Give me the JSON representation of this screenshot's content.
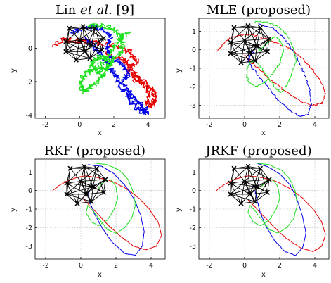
{
  "colors": {
    "red": "#e60000",
    "green": "#1ee01e",
    "blue": "#0000e6",
    "black": "#000000"
  },
  "chart_data": [
    {
      "type": "line",
      "title": "Lin et al. [9]",
      "title_parts": {
        "main": "Lin",
        "italic": "et al.",
        "ref": "[9]"
      },
      "xlabel": "x",
      "ylabel": "y",
      "xlim": [
        -2.6,
        5.0
      ],
      "ylim": [
        -4.2,
        1.8
      ],
      "xticks": [
        "-2",
        "0",
        "2",
        "4"
      ],
      "yticks": [
        "-4",
        "-2",
        "0"
      ],
      "xtick_values": [
        -2,
        0,
        2,
        4
      ],
      "ytick_values": [
        -4,
        -2,
        0
      ],
      "grid": false,
      "style": "noisy",
      "series": [
        {
          "color": "red",
          "x": [
            -1.5,
            -1.0,
            -0.5,
            0.3,
            1.2,
            2.2,
            3.0,
            3.3,
            2.8,
            3.2,
            3.9,
            4.3,
            4.4,
            4.2,
            3.9,
            4.1,
            3.6,
            3.2,
            2.8,
            2.5,
            1.5
          ],
          "y": [
            0.2,
            0.5,
            0.5,
            0.4,
            0.3,
            0.1,
            -0.3,
            -0.8,
            -1.3,
            -1.9,
            -2.1,
            -2.6,
            -3.1,
            -3.5,
            -3.2,
            -2.6,
            -2.0,
            -1.5,
            -0.9,
            -0.6,
            -0.3
          ]
        },
        {
          "color": "blue",
          "x": [
            -0.4,
            0.2,
            0.9,
            1.4,
            1.8,
            1.6,
            1.9,
            2.5,
            2.9,
            2.5,
            2.8,
            3.2,
            3.5,
            3.8,
            3.9,
            3.5,
            3.0,
            2.6,
            2.2,
            1.9,
            1.6,
            1.2,
            0.8,
            0.4
          ],
          "y": [
            0.9,
            1.2,
            1.3,
            1.1,
            0.6,
            0.0,
            -0.6,
            -1.0,
            -1.5,
            -2.0,
            -2.5,
            -3.0,
            -3.3,
            -3.6,
            -3.9,
            -3.7,
            -3.2,
            -2.6,
            -1.9,
            -1.4,
            -0.8,
            -0.3,
            0.2,
            0.6
          ]
        },
        {
          "color": "green",
          "x": [
            0.5,
            1.2,
            1.9,
            2.4,
            2.6,
            2.3,
            1.9,
            1.5,
            1.0,
            0.7,
            0.9,
            1.4,
            1.8,
            1.5,
            1.1,
            0.6,
            0.2,
            0.0,
            0.3,
            0.7,
            1.2,
            1.6,
            2.0,
            2.4,
            2.9
          ],
          "y": [
            1.3,
            1.4,
            1.2,
            0.8,
            0.3,
            -0.3,
            -0.8,
            -1.2,
            -1.4,
            -1.0,
            -0.6,
            -0.5,
            -0.9,
            -1.5,
            -1.9,
            -2.3,
            -2.6,
            -2.1,
            -1.6,
            -1.3,
            -1.0,
            -0.5,
            0.1,
            0.6,
            1.0
          ]
        }
      ]
    },
    {
      "type": "line",
      "title": "MLE (proposed)",
      "xlabel": "x",
      "ylabel": "y",
      "xlim": [
        -2.6,
        4.8
      ],
      "ylim": [
        -3.7,
        1.7
      ],
      "xticks": [
        "-2",
        "0",
        "2",
        "4"
      ],
      "yticks": [
        "-3",
        "-2",
        "-1",
        "0",
        "1"
      ],
      "xtick_values": [
        -2,
        0,
        2,
        4
      ],
      "ytick_values": [
        -3,
        -2,
        -1,
        0,
        1
      ],
      "grid": true,
      "style": "lightnoise",
      "series": [
        {
          "color": "red",
          "x": [
            -1.6,
            -1.3,
            -0.9,
            -0.3,
            0.4,
            1.2,
            2.0,
            2.7,
            3.3,
            3.9,
            4.4,
            4.6,
            4.4,
            3.9,
            3.2,
            2.4,
            1.6,
            0.9,
            0.3,
            0.0
          ],
          "y": [
            -0.1,
            0.2,
            0.6,
            0.8,
            0.8,
            0.6,
            0.3,
            0.0,
            -0.5,
            -1.1,
            -1.8,
            -2.4,
            -2.9,
            -3.0,
            -2.8,
            -2.3,
            -1.7,
            -1.1,
            -0.6,
            -0.3
          ]
        },
        {
          "color": "blue",
          "x": [
            0.8,
            1.5,
            2.1,
            2.6,
            3.0,
            3.4,
            3.7,
            3.8,
            3.6,
            3.2,
            2.6,
            1.9,
            1.3,
            0.8,
            0.4,
            0.2,
            0.3,
            0.6
          ],
          "y": [
            1.4,
            1.2,
            0.8,
            0.2,
            -0.5,
            -1.3,
            -2.1,
            -2.9,
            -3.5,
            -3.6,
            -3.3,
            -2.7,
            -2.0,
            -1.4,
            -0.9,
            -0.6,
            -0.3,
            0.0
          ]
        },
        {
          "color": "green",
          "x": [
            0.6,
            1.3,
            2.0,
            2.5,
            2.8,
            2.9,
            2.7,
            2.4,
            2.1,
            1.8,
            1.4,
            1.0,
            0.6,
            0.3,
            0.1,
            0.2,
            0.6,
            1.1,
            1.6,
            2.0,
            2.2,
            2.1,
            1.8,
            1.5,
            1.1,
            0.8
          ],
          "y": [
            1.5,
            1.5,
            1.2,
            0.7,
            0.1,
            -0.6,
            -1.3,
            -1.9,
            -2.3,
            -2.1,
            -1.6,
            -1.0,
            -0.6,
            -0.7,
            -1.2,
            -1.7,
            -2.0,
            -1.8,
            -1.3,
            -0.7,
            -0.1,
            0.4,
            0.7,
            0.6,
            0.2,
            -0.1
          ]
        }
      ]
    },
    {
      "type": "line",
      "title": "RKF (proposed)",
      "xlabel": "x",
      "ylabel": "y",
      "xlim": [
        -2.6,
        4.8
      ],
      "ylim": [
        -3.7,
        1.7
      ],
      "xticks": [
        "-2",
        "0",
        "2",
        "4"
      ],
      "yticks": [
        "-3",
        "-2",
        "-1",
        "0",
        "1"
      ],
      "xtick_values": [
        -2,
        0,
        2,
        4
      ],
      "ytick_values": [
        -3,
        -2,
        -1,
        0,
        1
      ],
      "grid": true,
      "style": "smooth",
      "series": [
        {
          "color": "red",
          "x": [
            -1.6,
            -1.2,
            -0.6,
            0.2,
            1.0,
            1.8,
            2.6,
            3.3,
            3.9,
            4.4,
            4.6,
            4.3,
            3.7,
            3.0,
            2.3,
            1.6,
            1.0,
            0.5,
            0.1
          ],
          "y": [
            0.0,
            0.3,
            0.6,
            0.8,
            0.7,
            0.5,
            0.1,
            -0.4,
            -1.0,
            -1.7,
            -2.4,
            -3.0,
            -3.2,
            -3.0,
            -2.5,
            -1.9,
            -1.3,
            -0.8,
            -0.4
          ]
        },
        {
          "color": "blue",
          "x": [
            0.4,
            1.2,
            1.9,
            2.5,
            3.0,
            3.4,
            3.6,
            3.5,
            3.1,
            2.5,
            1.8,
            1.2,
            0.8,
            0.5,
            0.4
          ],
          "y": [
            1.4,
            1.3,
            0.9,
            0.3,
            -0.4,
            -1.3,
            -2.2,
            -3.0,
            -3.5,
            -3.4,
            -2.8,
            -2.0,
            -1.3,
            -0.6,
            0.0
          ]
        },
        {
          "color": "green",
          "x": [
            0.7,
            1.5,
            2.2,
            2.7,
            3.0,
            3.1,
            2.9,
            2.5,
            2.0,
            1.5,
            1.1,
            0.7,
            0.4,
            0.3,
            0.6,
            1.0,
            1.5,
            1.9,
            2.1,
            2.0,
            1.7,
            1.3,
            1.0
          ],
          "y": [
            1.5,
            1.4,
            1.1,
            0.6,
            -0.1,
            -0.8,
            -1.5,
            -2.0,
            -2.3,
            -2.1,
            -1.6,
            -1.1,
            -0.8,
            -1.2,
            -1.7,
            -1.9,
            -1.6,
            -1.0,
            -0.4,
            0.2,
            0.6,
            0.5,
            0.1
          ]
        }
      ]
    },
    {
      "type": "line",
      "title": "JRKF (proposed)",
      "xlabel": "x",
      "ylabel": "y",
      "xlim": [
        -2.6,
        4.8
      ],
      "ylim": [
        -3.7,
        1.7
      ],
      "xticks": [
        "-2",
        "0",
        "2",
        "4"
      ],
      "yticks": [
        "-3",
        "-2",
        "-1",
        "0",
        "1"
      ],
      "xtick_values": [
        -2,
        0,
        2,
        4
      ],
      "ytick_values": [
        -3,
        -2,
        -1,
        0,
        1
      ],
      "grid": true,
      "style": "smooth",
      "series": [
        {
          "color": "red",
          "x": [
            -1.6,
            -1.2,
            -0.6,
            0.2,
            1.0,
            1.8,
            2.6,
            3.3,
            3.9,
            4.4,
            4.6,
            4.4,
            3.9,
            3.2,
            2.4,
            1.7,
            1.1,
            0.6,
            0.2
          ],
          "y": [
            0.0,
            0.3,
            0.6,
            0.8,
            0.7,
            0.5,
            0.1,
            -0.4,
            -1.0,
            -1.7,
            -2.4,
            -3.0,
            -3.3,
            -3.1,
            -2.6,
            -2.0,
            -1.4,
            -0.9,
            -0.5
          ]
        },
        {
          "color": "blue",
          "x": [
            0.6,
            1.3,
            2.0,
            2.6,
            3.0,
            3.3,
            3.5,
            3.3,
            2.9,
            2.3,
            1.7,
            1.2,
            0.9,
            0.7,
            0.6
          ],
          "y": [
            1.5,
            1.3,
            0.9,
            0.3,
            -0.5,
            -1.4,
            -2.3,
            -3.1,
            -3.5,
            -3.3,
            -2.7,
            -1.9,
            -1.2,
            -0.5,
            0.0
          ]
        },
        {
          "color": "green",
          "x": [
            0.6,
            1.4,
            2.1,
            2.6,
            2.9,
            3.0,
            2.8,
            2.4,
            1.9,
            1.4,
            1.0,
            0.6,
            0.3,
            0.2,
            0.5,
            0.9,
            1.4,
            1.8,
            2.0,
            1.9,
            1.6,
            1.2,
            0.9
          ],
          "y": [
            1.5,
            1.4,
            1.1,
            0.6,
            -0.1,
            -0.8,
            -1.5,
            -2.0,
            -2.3,
            -2.1,
            -1.6,
            -1.1,
            -0.8,
            -1.2,
            -1.7,
            -1.9,
            -1.6,
            -1.0,
            -0.4,
            0.2,
            0.6,
            0.5,
            0.1
          ]
        }
      ]
    }
  ],
  "network": {
    "nodes": [
      [
        -0.6,
        1.2
      ],
      [
        0.2,
        1.3
      ],
      [
        0.9,
        1.2
      ],
      [
        1.4,
        0.6
      ],
      [
        1.3,
        -0.1
      ],
      [
        0.6,
        -0.6
      ],
      [
        -0.2,
        -0.7
      ],
      [
        -0.8,
        -0.2
      ],
      [
        -0.8,
        0.4
      ],
      [
        0.0,
        0.5
      ],
      [
        0.7,
        0.2
      ],
      [
        0.3,
        -0.2
      ]
    ]
  }
}
